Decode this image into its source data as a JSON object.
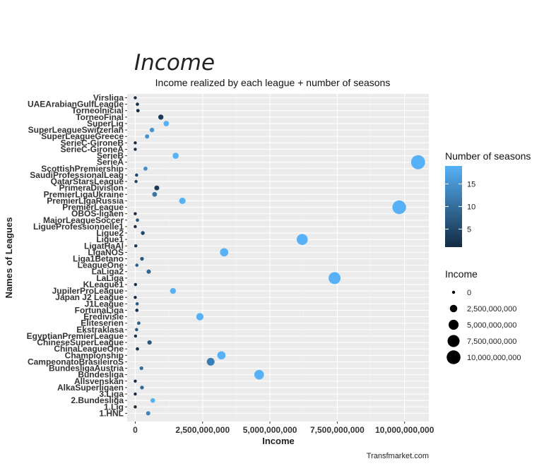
{
  "chart_data": {
    "type": "scatter",
    "title": "Income",
    "subtitle": "Income realized by each league + number of seasons",
    "xlabel": "Income",
    "ylabel": "Names of Leagues",
    "caption": "Transfmarket.com",
    "xlim": [
      -300000000,
      10900000000
    ],
    "x_ticks": [
      0,
      2500000000,
      5000000000,
      7500000000,
      10000000000
    ],
    "x_tick_labels": [
      "0",
      "2,500,000,000",
      "5,000,000,000",
      "7,500,000,000",
      "10,000,000,000"
    ],
    "grid": true,
    "legend_position": "right",
    "color_legend": {
      "title": "Number of seasons",
      "range": [
        1,
        19
      ],
      "breaks": [
        5,
        10,
        15
      ],
      "labels": [
        "5",
        "10",
        "15"
      ],
      "low_color": "#132b43",
      "high_color": "#56b1f7"
    },
    "size_legend": {
      "title": "Income",
      "breaks": [
        0,
        2500000000,
        5000000000,
        7500000000,
        10000000000
      ],
      "labels": [
        "0",
        "2,500,000,000",
        "5,000,000,000",
        "7,500,000,000",
        "10,000,000,000"
      ]
    },
    "points": [
      {
        "league": "Virsliga",
        "income": 0,
        "seasons": 1
      },
      {
        "league": "UAEArabianGulfLeague",
        "income": 80000000,
        "seasons": 2
      },
      {
        "league": "TorneoInicial",
        "income": 100000000,
        "seasons": 1
      },
      {
        "league": "TorneoFinal",
        "income": 950000000,
        "seasons": 3
      },
      {
        "league": "SuperLig",
        "income": 1150000000,
        "seasons": 19
      },
      {
        "league": "SuperLeagueSwitzerlan",
        "income": 620000000,
        "seasons": 15
      },
      {
        "league": "SuperLeagueGreece",
        "income": 440000000,
        "seasons": 15
      },
      {
        "league": "SerieC-GironeB",
        "income": 0,
        "seasons": 1
      },
      {
        "league": "SerieC-GironeA",
        "income": 0,
        "seasons": 1
      },
      {
        "league": "SerieB",
        "income": 1500000000,
        "seasons": 19
      },
      {
        "league": "SerieA",
        "income": 10500000000,
        "seasons": 19
      },
      {
        "league": "ScottishPremiership",
        "income": 380000000,
        "seasons": 14
      },
      {
        "league": "SaudiProfessionalLeag",
        "income": 50000000,
        "seasons": 5
      },
      {
        "league": "QatarStarsLeague",
        "income": 30000000,
        "seasons": 5
      },
      {
        "league": "PrimeraDivision",
        "income": 800000000,
        "seasons": 3
      },
      {
        "league": "PremierLigaUkraine",
        "income": 720000000,
        "seasons": 11
      },
      {
        "league": "PremierLigaRussia",
        "income": 1750000000,
        "seasons": 19
      },
      {
        "league": "PremierLeague",
        "income": 9800000000,
        "seasons": 19
      },
      {
        "league": "OBOS-ligaen",
        "income": 0,
        "seasons": 1
      },
      {
        "league": "MajorLeagueSoccer",
        "income": 80000000,
        "seasons": 7
      },
      {
        "league": "LigueProfessionnelle1",
        "income": 0,
        "seasons": 1
      },
      {
        "league": "Ligue2",
        "income": 280000000,
        "seasons": 5
      },
      {
        "league": "Ligue1",
        "income": 6200000000,
        "seasons": 19
      },
      {
        "league": "LigatHaAl",
        "income": 20000000,
        "seasons": 3
      },
      {
        "league": "LigaNOS",
        "income": 3300000000,
        "seasons": 19
      },
      {
        "league": "Liga1Betano",
        "income": 250000000,
        "seasons": 7
      },
      {
        "league": "LeagueOne",
        "income": 60000000,
        "seasons": 8
      },
      {
        "league": "LaLiga2",
        "income": 500000000,
        "seasons": 9
      },
      {
        "league": "LaLiga",
        "income": 7400000000,
        "seasons": 19
      },
      {
        "league": "KLeague1",
        "income": 10000000,
        "seasons": 2
      },
      {
        "league": "JupilerProLeague",
        "income": 1400000000,
        "seasons": 19
      },
      {
        "league": "Japan J2 League",
        "income": 0,
        "seasons": 1
      },
      {
        "league": "J1League",
        "income": 70000000,
        "seasons": 8
      },
      {
        "league": "FortunaLiga",
        "income": 60000000,
        "seasons": 2
      },
      {
        "league": "Eredivisie",
        "income": 2400000000,
        "seasons": 19
      },
      {
        "league": "Eliteserien",
        "income": 130000000,
        "seasons": 8
      },
      {
        "league": "Ekstraklasa",
        "income": 50000000,
        "seasons": 7
      },
      {
        "league": "EgyptianPremierLeague",
        "income": 10000000,
        "seasons": 2
      },
      {
        "league": "ChineseSuperLeague",
        "income": 530000000,
        "seasons": 7
      },
      {
        "league": "ChinaLeagueOne",
        "income": 80000000,
        "seasons": 2
      },
      {
        "league": "Championship",
        "income": 3200000000,
        "seasons": 19
      },
      {
        "league": "CampeonatoBrasileiroS",
        "income": 2800000000,
        "seasons": 12
      },
      {
        "league": "BundesligaAustria",
        "income": 230000000,
        "seasons": 10
      },
      {
        "league": "Bundesliga",
        "income": 4600000000,
        "seasons": 19
      },
      {
        "league": "Allsvenskan",
        "income": 0,
        "seasons": 1
      },
      {
        "league": "AlkaSuperligaen",
        "income": 250000000,
        "seasons": 9
      },
      {
        "league": "3.Liga",
        "income": 0,
        "seasons": 1
      },
      {
        "league": "2.Bundesliga",
        "income": 650000000,
        "seasons": 19
      },
      {
        "league": "1.Lig",
        "income": 0,
        "seasons": 1
      },
      {
        "league": "1.HNL",
        "income": 480000000,
        "seasons": 13
      }
    ]
  }
}
